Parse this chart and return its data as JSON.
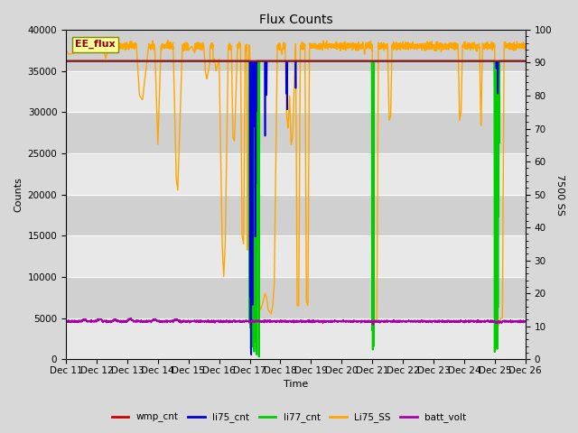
{
  "title": "Flux Counts",
  "xlabel": "Time",
  "ylabel_left": "Counts",
  "ylabel_right": "7500 SS",
  "ylim_left": [
    0,
    40000
  ],
  "ylim_right": [
    0,
    100
  ],
  "xtick_labels": [
    "Dec 11",
    "Dec 12",
    "Dec 13",
    "Dec 14",
    "Dec 15",
    "Dec 16",
    "Dec 17",
    "Dec 18",
    "Dec 19",
    "Dec 20",
    "Dec 21",
    "Dec 22",
    "Dec 23",
    "Dec 24",
    "Dec 25",
    "Dec 26"
  ],
  "annotation_text": "EE_flux",
  "bg_color": "#d8d8d8",
  "plot_bg_color_light": "#e8e8e8",
  "plot_bg_color_dark": "#d0d0d0",
  "grid_color": "white",
  "series": {
    "wmp_cnt": {
      "color": "#cc0000",
      "lw": 1.2
    },
    "li75_cnt": {
      "color": "#0000dd",
      "lw": 1.2
    },
    "li77_cnt": {
      "color": "#00cc00",
      "lw": 1.5
    },
    "Li75_SS": {
      "color": "orange",
      "lw": 1.0
    },
    "batt_volt": {
      "color": "#aa00aa",
      "lw": 1.0
    }
  },
  "ref_line_value": 36000,
  "ref_line_color": "#00cc00",
  "batt_base": 4600,
  "orange_base": 38000
}
